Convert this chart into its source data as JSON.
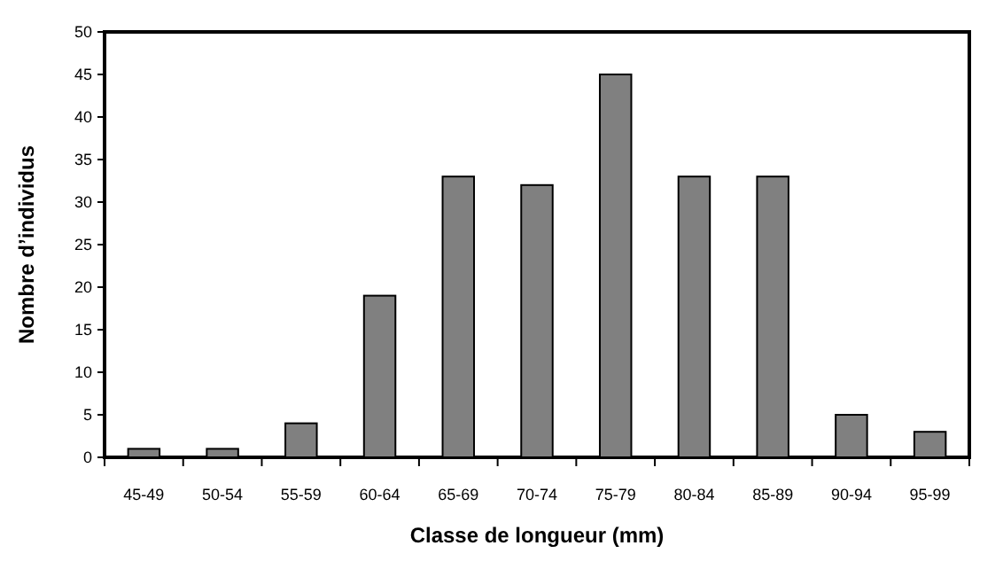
{
  "chart_data": {
    "type": "bar",
    "xlabel": "Classe de longueur (mm)",
    "ylabel": "Nombre d’individus",
    "categories": [
      "45-49",
      "50-54",
      "55-59",
      "60-64",
      "65-69",
      "70-74",
      "75-79",
      "80-84",
      "85-89",
      "90-94",
      "95-99"
    ],
    "values": [
      1,
      1,
      4,
      19,
      33,
      32,
      45,
      33,
      33,
      5,
      3
    ],
    "color": "#808080",
    "ylim": [
      0,
      50
    ],
    "yticks": [
      0,
      5,
      10,
      15,
      20,
      25,
      30,
      35,
      40,
      45,
      50
    ],
    "grid": false
  }
}
